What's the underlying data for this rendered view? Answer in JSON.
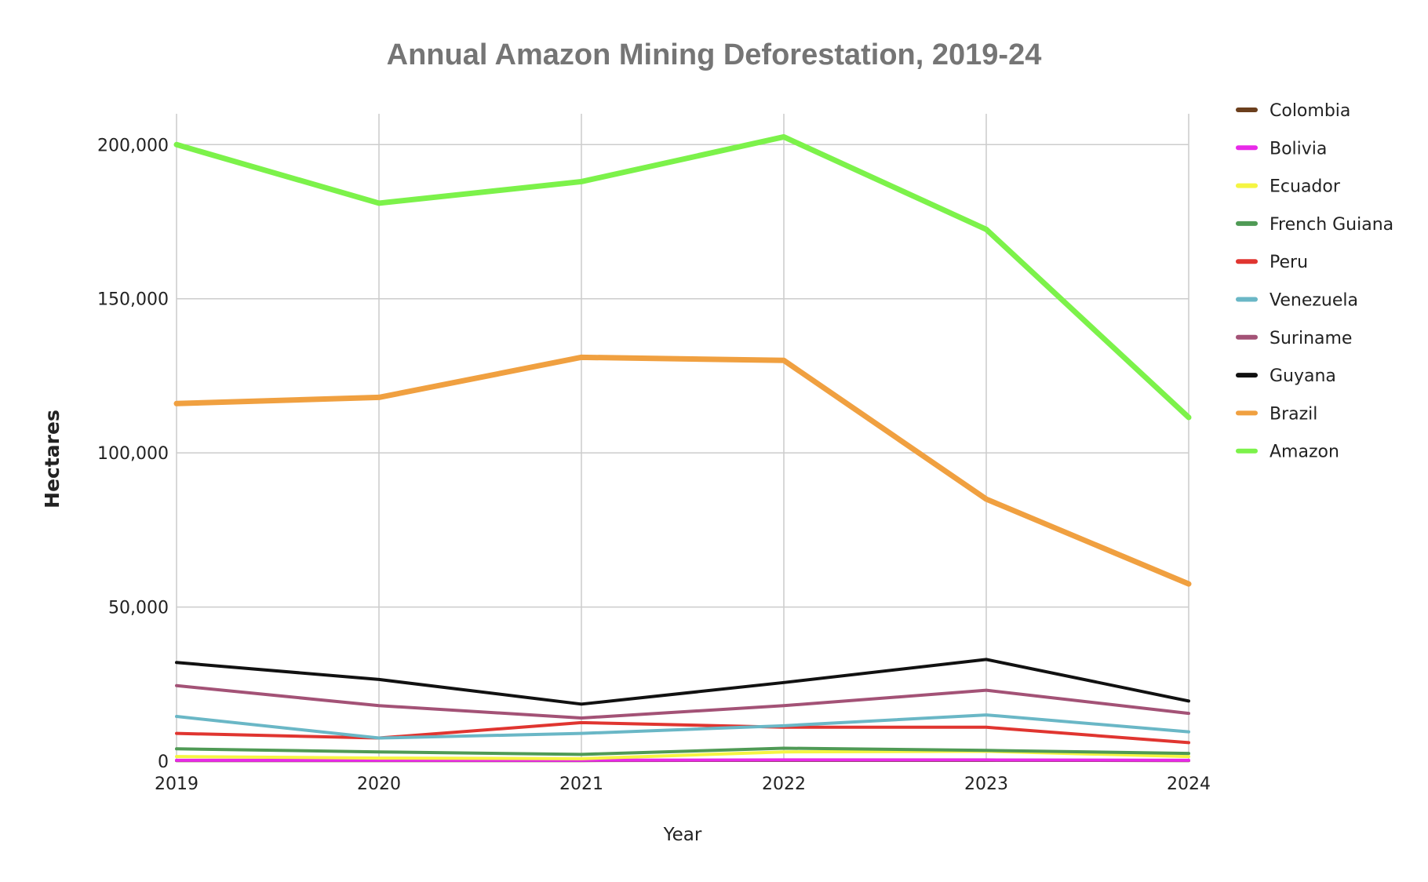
{
  "chart_data": {
    "type": "line",
    "title": "Annual Amazon Mining Deforestation, 2019-24",
    "xlabel": "Year",
    "ylabel": "Hectares",
    "x": [
      "2019",
      "2020",
      "2021",
      "2022",
      "2023",
      "2024"
    ],
    "ylim": [
      0,
      210000
    ],
    "yticks": [
      0,
      50000,
      100000,
      150000,
      200000
    ],
    "ytick_labels": [
      "0",
      "50,000",
      "100,000",
      "150,000",
      "200,000"
    ],
    "grid": true,
    "legend_position": "right",
    "series": [
      {
        "name": "Colombia",
        "color": "#6b3f1d",
        "values": [
          200,
          200,
          200,
          300,
          300,
          200
        ]
      },
      {
        "name": "Bolivia",
        "color": "#e82ae8",
        "values": [
          300,
          300,
          300,
          400,
          400,
          300
        ]
      },
      {
        "name": "Ecuador",
        "color": "#f5f542",
        "values": [
          1500,
          1000,
          800,
          3000,
          3200,
          1500
        ]
      },
      {
        "name": " French Guiana",
        "color": "#4f9a55",
        "values": [
          4000,
          3000,
          2200,
          4200,
          3500,
          2500
        ]
      },
      {
        "name": "Peru",
        "color": "#e03530",
        "values": [
          9000,
          7500,
          12500,
          11000,
          11000,
          6000
        ]
      },
      {
        "name": "Venezuela",
        "color": "#6ab7c6",
        "values": [
          14500,
          7500,
          9000,
          11500,
          15000,
          9500
        ]
      },
      {
        "name": "Suriname",
        "color": "#a35276",
        "values": [
          24500,
          18000,
          14000,
          18000,
          23000,
          15500
        ]
      },
      {
        "name": "Guyana",
        "color": "#111111",
        "values": [
          32000,
          26500,
          18500,
          25500,
          33000,
          19500
        ]
      },
      {
        "name": "Brazil",
        "color": "#f0a040",
        "values": [
          116000,
          118000,
          131000,
          130000,
          85000,
          57500
        ]
      },
      {
        "name": "Amazon",
        "color": "#7cf24a",
        "values": [
          200000,
          181000,
          188000,
          202500,
          172500,
          111500
        ]
      }
    ]
  }
}
